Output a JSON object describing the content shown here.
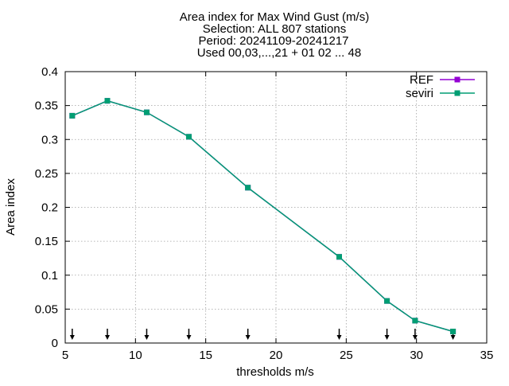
{
  "chart_data": {
    "type": "line",
    "title_lines": [
      "Area index  for Max Wind Gust (m/s)",
      "Selection: ALL    807 stations",
      "Period: 20241109-20241217",
      "Used 00,03,...,21 + 01 02 ... 48"
    ],
    "xlabel": "thresholds m/s",
    "ylabel": "Area index",
    "xlim": [
      5,
      35
    ],
    "ylim": [
      0,
      0.4
    ],
    "xticks": [
      5,
      10,
      15,
      20,
      25,
      30,
      35
    ],
    "xtick_labels": [
      "5",
      "10",
      "15",
      "20",
      "25",
      "30",
      "35"
    ],
    "yticks": [
      0,
      0.05,
      0.1,
      0.15,
      0.2,
      0.25,
      0.3,
      0.35,
      0.4
    ],
    "ytick_labels": [
      "0",
      "0.05",
      "0.1",
      "0.15",
      "0.2",
      "0.25",
      "0.3",
      "0.35",
      "0.4"
    ],
    "grid": true,
    "legend_position": "top-right",
    "threshold_arrows_x": [
      5.5,
      8.0,
      10.8,
      13.8,
      18.0,
      24.5,
      27.9,
      29.9,
      32.6
    ],
    "series": [
      {
        "name": "REF",
        "color": "#9400d3",
        "x": [
          5.5,
          8.0,
          10.8,
          13.8,
          18.0,
          24.5,
          27.9,
          29.9,
          32.6
        ],
        "values": [
          0.335,
          0.357,
          0.34,
          0.304,
          0.229,
          0.127,
          0.062,
          0.033,
          0.017
        ]
      },
      {
        "name": "seviri",
        "color": "#009e73",
        "x": [
          5.5,
          8.0,
          10.8,
          13.8,
          18.0,
          24.5,
          27.9,
          29.9,
          32.6
        ],
        "values": [
          0.335,
          0.357,
          0.34,
          0.304,
          0.229,
          0.127,
          0.062,
          0.033,
          0.017
        ]
      }
    ]
  }
}
